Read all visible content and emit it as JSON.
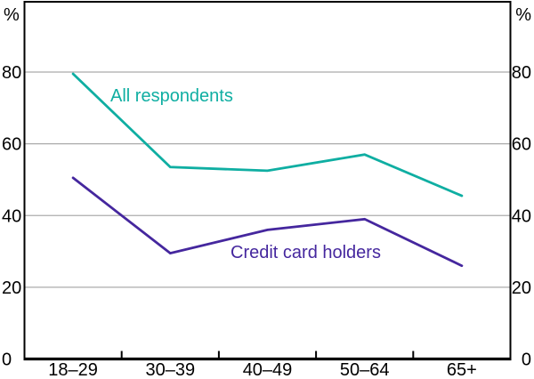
{
  "chart_data": {
    "type": "line",
    "title": "",
    "categories": [
      "18–29",
      "30–39",
      "40–49",
      "50–64",
      "65+"
    ],
    "series": [
      {
        "name": "All respondents",
        "color": "#0FAEA2",
        "values": [
          79.5,
          53.5,
          52.5,
          57,
          45.5
        ]
      },
      {
        "name": "Credit card holders",
        "color": "#45279E",
        "values": [
          50.5,
          29.5,
          36,
          39,
          26
        ]
      }
    ],
    "ylim": [
      0,
      100
    ],
    "yticks": [
      0,
      20,
      40,
      60,
      80
    ],
    "y_unit_left": "%",
    "y_unit_right": "%",
    "grid": true,
    "legend": "inline-labels",
    "axes": "dual-y-mirrored"
  },
  "colors": {
    "background": "#ffffff",
    "grid": "#ABABAB",
    "axis": "#000000"
  }
}
